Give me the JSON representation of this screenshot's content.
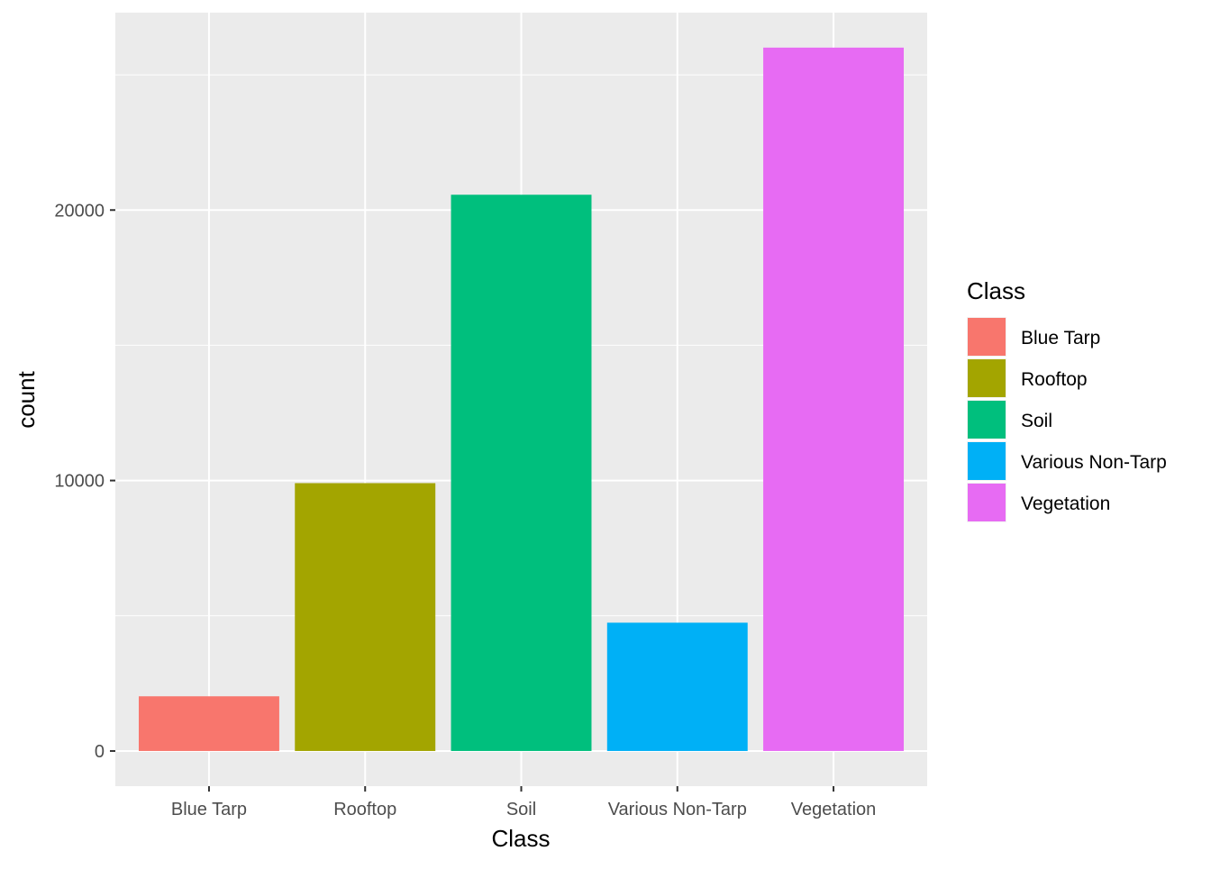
{
  "chart_data": {
    "type": "bar",
    "categories": [
      "Blue Tarp",
      "Rooftop",
      "Soil",
      "Various Non-Tarp",
      "Vegetation"
    ],
    "values": [
      2022,
      9903,
      20566,
      4744,
      26006
    ],
    "colors": [
      "#F8766D",
      "#A3A500",
      "#00BF7D",
      "#00B0F6",
      "#E76BF3"
    ],
    "xlabel": "Class",
    "ylabel": "count",
    "ylim": [
      -1300,
      27300
    ],
    "yticks": [
      0,
      10000,
      20000
    ],
    "yticks_minor": [
      5000,
      15000,
      25000
    ],
    "ytick_labels": [
      "0",
      "10000",
      "20000"
    ],
    "legend": {
      "title": "Class",
      "position": "right",
      "entries": [
        "Blue Tarp",
        "Rooftop",
        "Soil",
        "Various Non-Tarp",
        "Vegetation"
      ]
    },
    "panel_background": "#EBEBEB",
    "grid": true
  }
}
